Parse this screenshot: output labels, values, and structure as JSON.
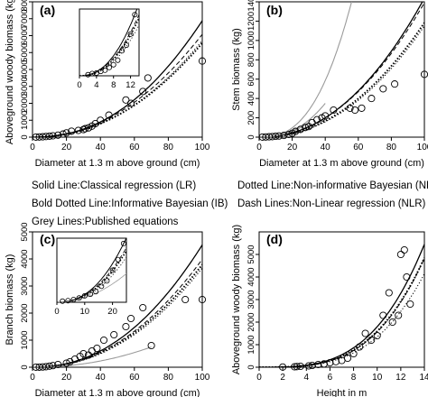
{
  "legend": {
    "items": [
      "Solid Line:Classical regression (LR)",
      "Dotted Line:Non-informative Bayesian (NB)",
      "Bold Dotted Line:Informative Bayesian (IB)",
      "Dash Lines:Non-Linear regression (NLR)",
      "Grey Lines:Published equations"
    ]
  },
  "chart_data": [
    {
      "panel": "(a)",
      "type": "scatter",
      "xlabel": "Diameter at 1.3 m above ground (cm)",
      "ylabel": "Aboveground woody biomass (kg)",
      "xlim": [
        0,
        100
      ],
      "ylim": [
        0,
        8000
      ],
      "xticks": [
        0,
        20,
        40,
        60,
        80,
        100
      ],
      "yticks": [
        0,
        1000,
        2000,
        3000,
        4000,
        5000,
        6000,
        7000,
        8000
      ],
      "points": {
        "x": [
          2,
          4,
          6,
          8,
          10,
          12,
          15,
          18,
          20,
          23,
          27,
          30,
          31,
          33,
          35,
          37,
          40,
          45,
          55,
          58,
          65,
          68,
          100
        ],
        "y": [
          5,
          10,
          20,
          40,
          60,
          80,
          120,
          180,
          250,
          350,
          400,
          450,
          500,
          550,
          650,
          800,
          1000,
          1300,
          2200,
          2000,
          2700,
          3500,
          4500
        ]
      },
      "curves": [
        {
          "style": "solid",
          "a": 0.25,
          "b": 2.22
        },
        {
          "style": "dashed",
          "a": 0.35,
          "b": 2.12
        },
        {
          "style": "dotted",
          "a": 0.3,
          "b": 2.14
        },
        {
          "style": "bold-dotted",
          "a": 0.32,
          "b": 2.12
        }
      ],
      "inset": {
        "xlim": [
          0,
          14
        ],
        "ylim": [
          0,
          120
        ],
        "xticks": [
          0,
          4,
          8,
          12
        ],
        "points": {
          "x": [
            2,
            3,
            4,
            5,
            6,
            7,
            8,
            9,
            10,
            11,
            12,
            13
          ],
          "y": [
            2,
            4,
            5,
            8,
            10,
            15,
            20,
            28,
            45,
            55,
            75,
            110
          ]
        }
      }
    },
    {
      "panel": "(b)",
      "type": "scatter",
      "xlabel": "Diameter at 1.3 m above ground (cm)",
      "ylabel": "Stem biomass (kg)",
      "xlim": [
        0,
        100
      ],
      "ylim": [
        0,
        1400
      ],
      "xticks": [
        0,
        20,
        40,
        60,
        80,
        100
      ],
      "yticks": [
        0,
        200,
        400,
        600,
        800,
        1000,
        1200,
        1400
      ],
      "points": {
        "x": [
          2,
          4,
          6,
          8,
          10,
          12,
          15,
          18,
          20,
          22,
          25,
          28,
          30,
          32,
          35,
          38,
          40,
          45,
          55,
          58,
          62,
          68,
          75,
          82,
          100
        ],
        "y": [
          1,
          2,
          4,
          6,
          9,
          12,
          18,
          28,
          40,
          60,
          80,
          100,
          110,
          150,
          180,
          200,
          220,
          280,
          300,
          280,
          300,
          400,
          500,
          550,
          650
        ]
      },
      "curves": [
        {
          "style": "solid",
          "a": 0.072,
          "b": 2.15
        },
        {
          "style": "dashed",
          "a": 0.08,
          "b": 2.12
        },
        {
          "style": "dotted",
          "a": 0.055,
          "b": 2.16
        },
        {
          "style": "bold-dotted",
          "a": 0.065,
          "b": 2.13
        },
        {
          "style": "grey",
          "a": 0.04,
          "b": 2.6,
          "xmax": 60
        },
        {
          "style": "grey",
          "a": 0.05,
          "b": 2.4,
          "xmax": 40
        },
        {
          "style": "grey",
          "a": 0.06,
          "b": 2.3,
          "xmax": 30
        }
      ]
    },
    {
      "panel": "(c)",
      "type": "scatter",
      "xlabel": "Diameter at 1.3 m above ground (cm)",
      "ylabel": "Branch biomass (kg)",
      "xlim": [
        0,
        100
      ],
      "ylim": [
        0,
        5000
      ],
      "xticks": [
        0,
        20,
        40,
        60,
        80,
        100
      ],
      "yticks": [
        0,
        1000,
        2000,
        3000,
        4000,
        5000
      ],
      "points": {
        "x": [
          2,
          4,
          6,
          8,
          10,
          12,
          15,
          20,
          22,
          25,
          28,
          30,
          33,
          35,
          38,
          42,
          48,
          55,
          58,
          65,
          70,
          90,
          100
        ],
        "y": [
          2,
          5,
          10,
          20,
          40,
          60,
          100,
          150,
          200,
          300,
          400,
          500,
          450,
          600,
          700,
          1000,
          1200,
          1500,
          1800,
          2200,
          800,
          2500,
          2500
        ]
      },
      "curves": [
        {
          "style": "solid",
          "a": 0.18,
          "b": 2.2
        },
        {
          "style": "dashed",
          "a": 0.2,
          "b": 2.15
        },
        {
          "style": "dotted",
          "a": 0.16,
          "b": 2.18
        },
        {
          "style": "bold-dotted",
          "a": 0.19,
          "b": 2.15
        },
        {
          "style": "grey",
          "a": 0.1,
          "b": 2.1,
          "xmax": 70
        }
      ],
      "inset": {
        "xlim": [
          0,
          25
        ],
        "ylim": [
          0,
          120
        ],
        "xticks": [
          0,
          10,
          20
        ],
        "points": {
          "x": [
            2,
            4,
            6,
            8,
            10,
            12,
            14,
            16,
            18,
            20,
            22,
            24
          ],
          "y": [
            2,
            3,
            5,
            8,
            12,
            15,
            20,
            30,
            40,
            60,
            80,
            110
          ]
        }
      }
    },
    {
      "panel": "(d)",
      "type": "scatter",
      "xlabel": "Height in m",
      "ylabel": "Aboveground woody biomass (kg)",
      "xlim": [
        0,
        14
      ],
      "ylim": [
        0,
        6000
      ],
      "xticks": [
        0,
        2,
        4,
        6,
        8,
        10,
        12,
        14
      ],
      "yticks": [
        0,
        1000,
        2000,
        3000,
        4000,
        5000
      ],
      "points": {
        "x": [
          2,
          3,
          3.2,
          3.5,
          4.2,
          4.5,
          5,
          5.5,
          6,
          6.5,
          7,
          7.5,
          8,
          8.5,
          9,
          9.5,
          10,
          10.5,
          11,
          11.3,
          11.8,
          12,
          12.3,
          12.5,
          12.8
        ],
        "y": [
          10,
          20,
          30,
          40,
          60,
          80,
          120,
          150,
          200,
          250,
          300,
          400,
          600,
          900,
          1500,
          1200,
          1400,
          2300,
          3300,
          2000,
          2300,
          5000,
          5200,
          4000,
          2800
        ]
      },
      "curves": [
        {
          "style": "solid",
          "a": 0.9,
          "b": 3.3
        },
        {
          "style": "dashed",
          "a": 0.7,
          "b": 3.35
        },
        {
          "style": "dotted",
          "a": 0.6,
          "b": 3.35
        },
        {
          "style": "bold-dotted",
          "a": 0.8,
          "b": 3.3
        }
      ]
    }
  ]
}
